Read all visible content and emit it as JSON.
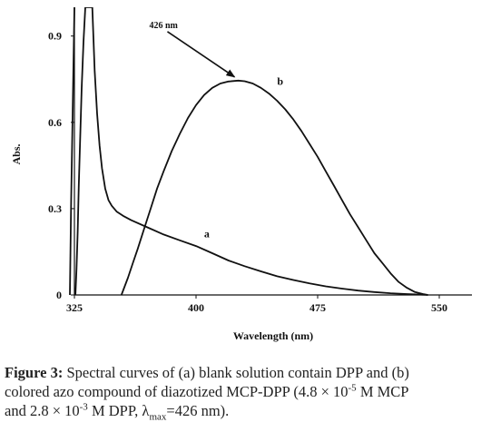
{
  "chart_data": {
    "type": "line",
    "title": "",
    "xlabel": "Wavelength (nm)",
    "ylabel": "Abs.",
    "xlim": [
      325,
      580
    ],
    "ylim": [
      0,
      1.0
    ],
    "x_ticks": [
      325,
      400,
      475,
      550
    ],
    "y_ticks": [
      0,
      0.3,
      0.6,
      0.9
    ],
    "x_tick_labels": [
      "325",
      "400",
      "475",
      "550"
    ],
    "y_tick_labels": [
      "0",
      "0.3",
      "0.6",
      "0.9"
    ],
    "grid": false,
    "series": [
      {
        "name": "a",
        "color": "#111111",
        "x": [
          325.6,
          326.3,
          327.0,
          327.7,
          328.6,
          329.5,
          330.6,
          331.7,
          333.0,
          334.5,
          336.0,
          337.5,
          339.0,
          340.5,
          342.0,
          344.0,
          346.0,
          348.0,
          351.0,
          355.0,
          360.0,
          370.0,
          380.0,
          390.0,
          400.0,
          410.0,
          420.0,
          430.0,
          440.0,
          450.0,
          460.0,
          470.0,
          480.0,
          490.0,
          500.0,
          510.0,
          520.0,
          530.0,
          540.0,
          543.0
        ],
        "y": [
          0.0,
          0.09,
          0.22,
          0.38,
          0.55,
          0.72,
          0.88,
          1.0,
          1.0,
          1.0,
          1.0,
          0.78,
          0.63,
          0.52,
          0.44,
          0.37,
          0.33,
          0.31,
          0.29,
          0.275,
          0.26,
          0.235,
          0.21,
          0.19,
          0.17,
          0.145,
          0.12,
          0.1,
          0.082,
          0.065,
          0.052,
          0.04,
          0.03,
          0.022,
          0.015,
          0.01,
          0.006,
          0.003,
          0.001,
          0.0
        ]
      },
      {
        "name": "b",
        "color": "#111111",
        "x": [
          354,
          356,
          358,
          361,
          364,
          368,
          372,
          376,
          380,
          385,
          390,
          395,
          400,
          405,
          410,
          415,
          420,
          426,
          430,
          435,
          440,
          445,
          450,
          455,
          460,
          465,
          470,
          475,
          480,
          485,
          490,
          495,
          500,
          505,
          510,
          515,
          520,
          525,
          530,
          535,
          540,
          543
        ],
        "y": [
          0.0,
          0.03,
          0.06,
          0.11,
          0.16,
          0.23,
          0.3,
          0.37,
          0.43,
          0.5,
          0.56,
          0.615,
          0.66,
          0.695,
          0.72,
          0.735,
          0.742,
          0.745,
          0.743,
          0.735,
          0.72,
          0.7,
          0.675,
          0.645,
          0.61,
          0.57,
          0.525,
          0.48,
          0.43,
          0.38,
          0.33,
          0.28,
          0.235,
          0.19,
          0.145,
          0.11,
          0.075,
          0.045,
          0.025,
          0.01,
          0.003,
          0.0
        ]
      },
      {
        "name": "",
        "color": "#111111",
        "x": [
          325.0,
          324.0,
          323.0,
          322.2
        ],
        "y": [
          1.0,
          0.66,
          0.33,
          0.0
        ]
      }
    ],
    "annotations": [
      {
        "text": "426 nm",
        "points_to": {
          "x": 426,
          "y": 0.745
        }
      }
    ],
    "curve_labels": [
      {
        "text": "a",
        "x": 405,
        "y": 0.2
      },
      {
        "text": "b",
        "x": 450,
        "y": 0.73
      }
    ]
  },
  "caption": {
    "label": "Figure 3:",
    "line1": " Spectral curves of (a) blank solution contain DPP and (b)",
    "line2_a": "colored azo compound of diazotized MCP-DPP (4.8 × 10",
    "line2_sup": "-5",
    "line2_b": " M MCP",
    "line3_a": "and 2.8 × 10",
    "line3_sup": "-3",
    "line3_b": " M DPP, λ",
    "line3_sub": "max",
    "line3_c": "=426 nm)."
  }
}
